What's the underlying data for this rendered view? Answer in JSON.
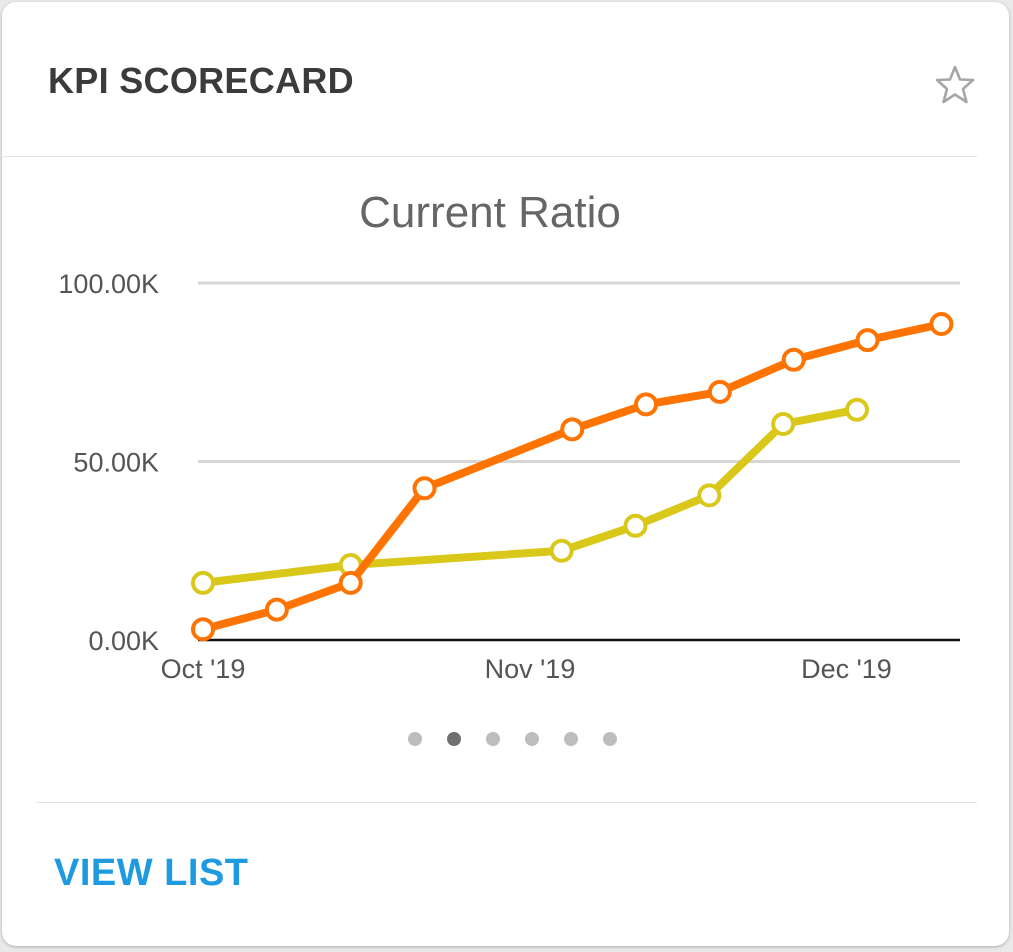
{
  "card": {
    "title": "KPI SCORECARD",
    "footer_link": "VIEW LIST",
    "pager": {
      "count": 6,
      "active_index": 1
    }
  },
  "icons": {
    "favorite": "star-outline-icon"
  },
  "colors": {
    "orange_series": "#ff7300",
    "yellow_series": "#d9c81a",
    "link": "#1e9be0"
  },
  "chart_data": {
    "type": "line",
    "title": "Current Ratio",
    "xlabel": "",
    "ylabel": "",
    "x_ticks": [
      "Oct '19",
      "Nov '19",
      "Dec '19"
    ],
    "y_ticks": [
      "0.00K",
      "50.00K",
      "100.00K"
    ],
    "ylim": [
      0,
      100000
    ],
    "grid": true,
    "legend": "none",
    "series": [
      {
        "color": "#ff7300",
        "points": [
          {
            "x": "2019-10-01",
            "y": 3000
          },
          {
            "x": "2019-10-08",
            "y": 8500
          },
          {
            "x": "2019-10-15",
            "y": 16000
          },
          {
            "x": "2019-10-22",
            "y": 42500
          },
          {
            "x": "2019-11-05",
            "y": 59000
          },
          {
            "x": "2019-11-12",
            "y": 66000
          },
          {
            "x": "2019-11-19",
            "y": 69500
          },
          {
            "x": "2019-11-26",
            "y": 78500
          },
          {
            "x": "2019-12-03",
            "y": 84000
          },
          {
            "x": "2019-12-10",
            "y": 88500
          }
        ]
      },
      {
        "color": "#d9c81a",
        "points": [
          {
            "x": "2019-10-01",
            "y": 16000
          },
          {
            "x": "2019-10-15",
            "y": 21000
          },
          {
            "x": "2019-11-04",
            "y": 25000
          },
          {
            "x": "2019-11-11",
            "y": 32000
          },
          {
            "x": "2019-11-18",
            "y": 40500
          },
          {
            "x": "2019-11-25",
            "y": 60500
          },
          {
            "x": "2019-12-02",
            "y": 64500
          }
        ]
      }
    ]
  }
}
